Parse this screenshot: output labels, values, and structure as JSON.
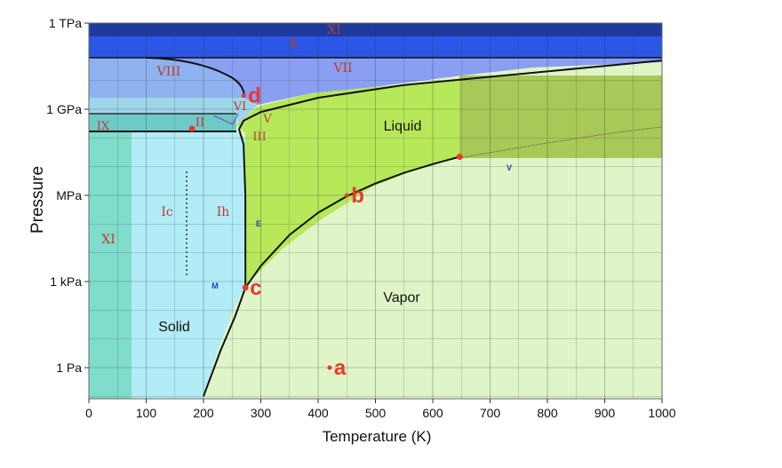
{
  "chart_data": {
    "type": "phase-diagram",
    "xlabel": "Temperature (K)",
    "ylabel": "Pressure",
    "xlim": [
      0,
      1000
    ],
    "x_ticks": [
      0,
      100,
      200,
      300,
      400,
      500,
      600,
      700,
      800,
      900,
      1000
    ],
    "y_scale": "log",
    "y_tick_labels": [
      {
        "label": "1 TPa",
        "pascal": 1000000000000.0
      },
      {
        "label": "1 GPa",
        "pascal": 1000000000.0
      },
      {
        "label": "MPa",
        "pascal": 1000000.0
      },
      {
        "label": "1 kPa",
        "pascal": 1000.0
      },
      {
        "label": "1 Pa",
        "pascal": 1
      }
    ],
    "grid": true,
    "regions": [
      {
        "label": "Liquid",
        "color": "#b6e85a"
      },
      {
        "label": "Vapor",
        "color": "#dff5c8"
      },
      {
        "label": "Solid",
        "color": "#b2ecf6"
      },
      {
        "label": "Ih",
        "color": "#b2ecf6"
      },
      {
        "label": "Ic",
        "color": "#b2ecf6"
      },
      {
        "label": "XI",
        "color": "#80dccb"
      },
      {
        "label": "IX",
        "color": "#6fc9c7"
      },
      {
        "label": "II",
        "color": "#6fc9c7"
      },
      {
        "label": "III",
        "color": "#9fd5e8"
      },
      {
        "label": "V",
        "color": "#9fd5e8"
      },
      {
        "label": "VI",
        "color": "#8fb9f2"
      },
      {
        "label": "VII",
        "color": "#8a9ef2"
      },
      {
        "label": "VIII",
        "color": "#8fb2f0"
      },
      {
        "label": "X",
        "color": "#2b56e6"
      },
      {
        "label": "XI",
        "color": "#1f3a9e"
      }
    ],
    "phase_labels": [
      "Liquid",
      "Vapor",
      "Solid",
      "Ih",
      "Ic",
      "XI",
      "IX",
      "II",
      "III",
      "V",
      "VI",
      "VII",
      "VIII",
      "X",
      "XI"
    ],
    "boundary_labels": [
      "E",
      "M",
      "V"
    ],
    "sublimation_curve": [
      {
        "t": 200,
        "p": 0.1
      },
      {
        "t": 230,
        "p": 4
      },
      {
        "t": 255,
        "p": 60
      },
      {
        "t": 273.16,
        "p": 611
      }
    ],
    "vaporization_curve": [
      {
        "t": 273.16,
        "p": 611
      },
      {
        "t": 300,
        "p": 3500
      },
      {
        "t": 350,
        "p": 42000
      },
      {
        "t": 400,
        "p": 250000
      },
      {
        "t": 450,
        "p": 930000
      },
      {
        "t": 500,
        "p": 2600000
      },
      {
        "t": 550,
        "p": 6100000
      },
      {
        "t": 600,
        "p": 12300000
      },
      {
        "t": 647,
        "p": 22100000
      }
    ],
    "melting_curve": [
      {
        "t": 273.16,
        "p": 611
      },
      {
        "t": 273,
        "p": 1000000
      },
      {
        "t": 270,
        "p": 60000000
      },
      {
        "t": 262,
        "p": 200000000
      },
      {
        "t": 270,
        "p": 400000000
      },
      {
        "t": 300,
        "p": 800000000
      },
      {
        "t": 400,
        "p": 2500000000
      },
      {
        "t": 550,
        "p": 7000000000
      },
      {
        "t": 1000,
        "p": 50000000000
      }
    ],
    "critical_point": {
      "t": 647,
      "p": 22100000
    },
    "triple_point": {
      "t": 273.16,
      "p": 611
    },
    "annotations": [
      {
        "label": "a",
        "t": 420,
        "p": 1
      },
      {
        "label": "b",
        "t": 450,
        "p": 1000000
      },
      {
        "label": "c",
        "t": 273.16,
        "p": 611
      },
      {
        "label": "d",
        "t": 270,
        "p": 3000000000
      }
    ],
    "colors": {
      "annotation": "#e8392c",
      "boundary": "#111111",
      "phase_text": "#c0392b",
      "point_text": "#1e3cc8",
      "grid": "#3a3a3a"
    }
  }
}
